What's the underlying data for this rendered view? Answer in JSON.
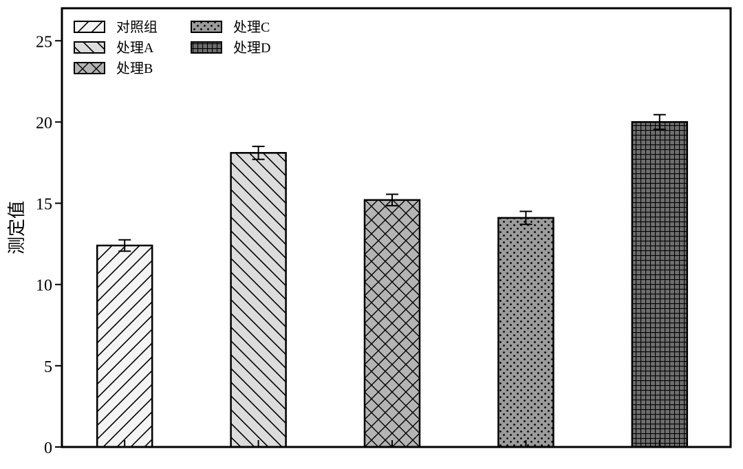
{
  "chart_data": {
    "type": "bar",
    "title": "",
    "xlabel": "",
    "ylabel": "测定值",
    "ylim": [
      0,
      27
    ],
    "yticks": [
      0,
      5,
      10,
      15,
      20,
      25
    ],
    "grid": false,
    "legend_position": "top-left",
    "series": [
      {
        "name": "对照组",
        "value": 12.4,
        "error": 0.35,
        "fill": "#f4f4f4",
        "pattern": "forward-diagonal"
      },
      {
        "name": "处理A",
        "value": 18.1,
        "error": 0.4,
        "fill": "#dcdcdc",
        "pattern": "backward-diagonal"
      },
      {
        "name": "处理B",
        "value": 15.2,
        "error": 0.35,
        "fill": "#b4b4b4",
        "pattern": "crosshatch"
      },
      {
        "name": "处理C",
        "value": 14.1,
        "error": 0.4,
        "fill": "#9b9b9b",
        "pattern": "dots"
      },
      {
        "name": "处理D",
        "value": 20.0,
        "error": 0.45,
        "fill": "#6e6e6e",
        "pattern": "grid"
      }
    ]
  }
}
